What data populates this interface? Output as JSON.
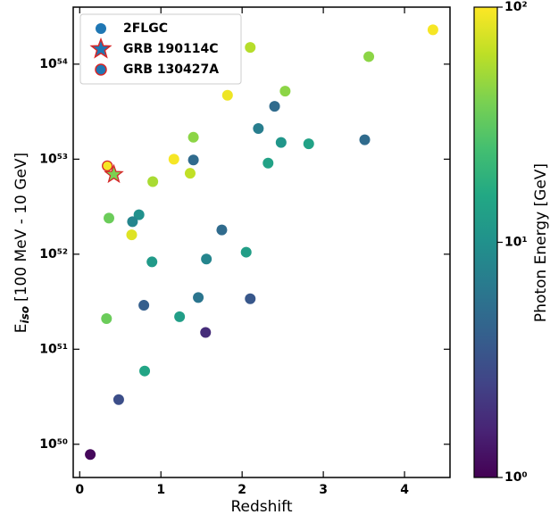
{
  "chart_data": {
    "type": "scatter",
    "xlabel": "Redshift",
    "ylabel_parts": [
      "E",
      "iso",
      "[100 MeV - 10 GeV]"
    ],
    "xlim": [
      -0.08,
      4.56
    ],
    "ylim": [
      4.47e+49,
      3.98e+54
    ],
    "log_y": true,
    "xticks": [
      0,
      1,
      2,
      3,
      4
    ],
    "yticks": [
      {
        "value": 1e+50,
        "label": "10⁵⁰"
      },
      {
        "value": 1e+51,
        "label": "10⁵¹"
      },
      {
        "value": 1e+52,
        "label": "10⁵²"
      },
      {
        "value": 1e+53,
        "label": "10⁵³"
      },
      {
        "value": 1e+54,
        "label": "10⁵⁴"
      }
    ],
    "legend_position": "upper left",
    "colorbar": {
      "label": "Photon Energy [GeV]",
      "cmap": "viridis",
      "log": true,
      "clim": [
        1,
        100
      ],
      "ticks": [
        {
          "value": 1,
          "label": "10⁰"
        },
        {
          "value": 10,
          "label": "10¹"
        },
        {
          "value": 100,
          "label": "10²"
        }
      ]
    },
    "series": [
      {
        "name": "2FLGC",
        "marker": "circle",
        "color": "#1f77b4",
        "x": [
          0.13,
          0.48,
          0.8,
          0.33,
          0.79,
          1.23,
          1.55,
          1.46,
          2.1,
          0.89,
          1.56,
          2.05,
          1.75,
          0.73,
          0.65,
          0.64,
          0.36,
          0.9,
          1.36,
          1.16,
          1.4,
          1.4,
          2.32,
          2.48,
          2.82,
          3.51,
          2.2,
          2.4,
          1.82,
          2.53,
          2.1,
          3.56,
          4.35
        ],
        "values": [
          7.8e+49,
          2.95e+50,
          5.9e+50,
          2.1e+51,
          2.9e+51,
          2.2e+51,
          1.5e+51,
          3.5e+51,
          3.4e+51,
          8.3e+51,
          8.9e+51,
          1.05e+52,
          1.8e+52,
          2.6e+52,
          2.2e+52,
          1.6e+52,
          2.4e+52,
          5.8e+52,
          7.1e+52,
          1e+53,
          9.8e+52,
          1.7e+53,
          9.1e+52,
          1.5e+53,
          1.45e+53,
          1.6e+53,
          2.1e+53,
          3.6e+53,
          4.7e+53,
          5.2e+53,
          1.5e+54,
          1.2e+54,
          2.3e+54
        ],
        "energy": [
          1.1,
          3,
          15,
          35,
          4,
          13,
          1.8,
          6,
          3.5,
          12,
          8,
          13,
          5,
          10,
          8,
          80,
          35,
          55,
          65,
          95,
          5,
          45,
          14,
          11,
          14,
          5,
          7,
          5,
          90,
          45,
          60,
          45,
          95
        ]
      },
      {
        "name": "GRB 190114C",
        "marker": "star",
        "color": "#1f77b4",
        "edgecolor": "#d62728",
        "x": [
          0.42
        ],
        "values": [
          6.9e+52
        ],
        "energy": [
          40
        ]
      },
      {
        "name": "GRB 130427A",
        "marker": "circle",
        "color": "#1f77b4",
        "edgecolor": "#d62728",
        "x": [
          0.34
        ],
        "values": [
          8.5e+52
        ],
        "energy": [
          95
        ]
      }
    ]
  }
}
